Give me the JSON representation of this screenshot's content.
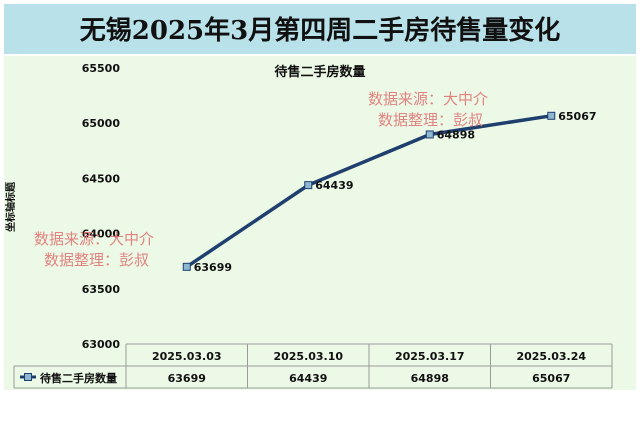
{
  "header": {
    "title": "无锡2025年3月第四周二手房待售量变化"
  },
  "chart_data": {
    "type": "line",
    "title": "待售二手房数量",
    "ylabel": "坐标轴标题",
    "xlabel": "",
    "categories": [
      "2025.03.03",
      "2025.03.10",
      "2025.03.17",
      "2025.03.24"
    ],
    "series": [
      {
        "name": "待售二手房数量",
        "values": [
          63699,
          64439,
          64898,
          65067
        ]
      }
    ],
    "ylim": [
      63000,
      65500
    ],
    "yticks": [
      63000,
      63500,
      64000,
      64500,
      65000,
      65500
    ],
    "data_labels": [
      "63699",
      "64439",
      "64898",
      "65067"
    ],
    "legend": "data-table",
    "grid": false
  },
  "watermarks": [
    {
      "line1": "数据来源：大中介",
      "line2": "数据整理：彭叔"
    },
    {
      "line1": "数据来源：大中介",
      "line2": "数据整理：彭叔"
    }
  ],
  "colors": {
    "title_bg": "#b9e1ea",
    "plot_bg": "#ecf9e6",
    "line": "#1f3f6e",
    "marker": "#8fb8d0",
    "watermark": "#e07575"
  }
}
